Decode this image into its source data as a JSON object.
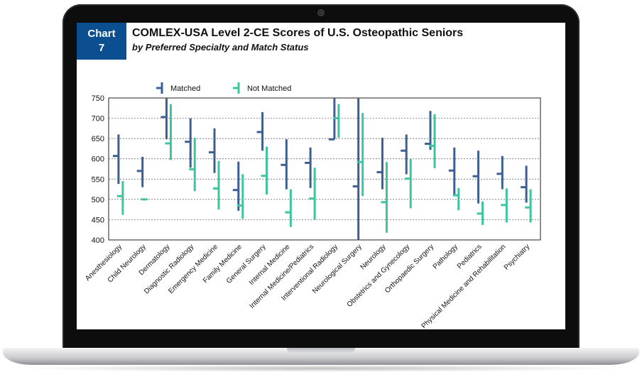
{
  "badge": {
    "line1": "Chart",
    "line2": "7"
  },
  "title": "COMLEX-USA Level 2-CE Scores of U.S. Osteopathic Seniors",
  "subtitle": "by Preferred Specialty and Match Status",
  "colors": {
    "matched": "#3f5f91",
    "not_matched": "#3ec4a0",
    "badge": "#0b4f91"
  },
  "chart_data": {
    "type": "range-bar",
    "ylim": [
      400,
      750
    ],
    "yticks": [
      400,
      450,
      500,
      550,
      600,
      650,
      700,
      750
    ],
    "grid": "horizontal-dashed",
    "legend_placement": "top-left",
    "categories": [
      "Anesthesiology",
      "Child Neurology",
      "Dermatology",
      "Diagnostic Radiology",
      "Emergency Medicine",
      "Family Medicine",
      "General Surgery",
      "Internal Medicine",
      "Internal Medicine/Pediatrics",
      "Interventional Radiology",
      "Neurological Surgery",
      "Neurology",
      "Obstetrics and Gynecology",
      "Orthopaedic Surgery",
      "Pathology",
      "Pediatrics",
      "Physical Medicine and Rehabilitation",
      "Psychiatry"
    ],
    "series": [
      {
        "name": "Matched",
        "high": [
          660,
          605,
          750,
          700,
          675,
          593,
          715,
          648,
          628,
          750,
          750,
          652,
          660,
          718,
          628,
          620,
          607,
          583
        ],
        "low": [
          538,
          530,
          648,
          578,
          565,
          472,
          620,
          525,
          528,
          648,
          400,
          525,
          562,
          622,
          512,
          490,
          525,
          492
        ],
        "median": [
          607,
          570,
          703,
          642,
          616,
          523,
          666,
          585,
          590,
          648,
          532,
          567,
          620,
          637,
          571,
          557,
          563,
          530
        ]
      },
      {
        "name": "Not Matched",
        "high": [
          545,
          502,
          735,
          652,
          595,
          562,
          630,
          525,
          578,
          735,
          713,
          592,
          600,
          710,
          528,
          495,
          527,
          525
        ],
        "low": [
          462,
          498,
          597,
          520,
          475,
          452,
          512,
          432,
          450,
          652,
          508,
          418,
          478,
          577,
          473,
          437,
          443,
          443
        ],
        "median": [
          508,
          500,
          638,
          574,
          527,
          485,
          558,
          468,
          502,
          700,
          592,
          493,
          551,
          632,
          510,
          465,
          486,
          480
        ]
      }
    ]
  }
}
